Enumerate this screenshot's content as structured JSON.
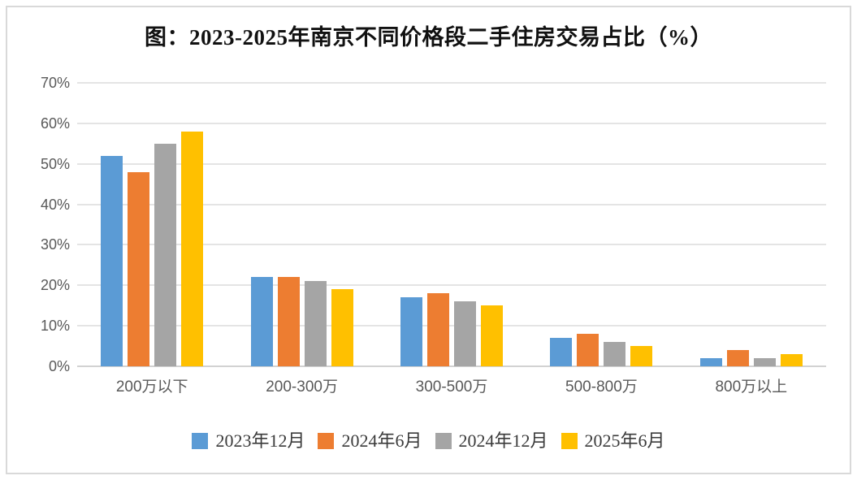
{
  "chart_data": {
    "type": "bar",
    "title": "图：2023-2025年南京不同价格段二手住房交易占比（%）",
    "categories": [
      "200万以下",
      "200-300万",
      "300-500万",
      "500-800万",
      "800万以上"
    ],
    "series": [
      {
        "name": "2023年12月",
        "color": "#5B9BD5",
        "values": [
          52,
          22,
          17,
          7,
          2
        ]
      },
      {
        "name": "2024年6月",
        "color": "#ED7D31",
        "values": [
          48,
          22,
          18,
          8,
          4
        ]
      },
      {
        "name": "2024年12月",
        "color": "#A5A5A5",
        "values": [
          55,
          21,
          16,
          6,
          2
        ]
      },
      {
        "name": "2025年6月",
        "color": "#FFC000",
        "values": [
          58,
          19,
          15,
          5,
          3
        ]
      }
    ],
    "xlabel": "",
    "ylabel": "",
    "ylim": [
      0,
      70
    ],
    "ytick_step": 10,
    "ytick_labels": [
      "0%",
      "10%",
      "20%",
      "30%",
      "40%",
      "50%",
      "60%",
      "70%"
    ],
    "grid": true,
    "legend_position": "bottom",
    "colors": {
      "gridline": "#E4E4E4",
      "baseline": "#D2D2D2",
      "axis_text": "#595959",
      "title_text": "#111111",
      "frame_border": "#D9D9D9",
      "background": "#FFFFFF"
    }
  }
}
